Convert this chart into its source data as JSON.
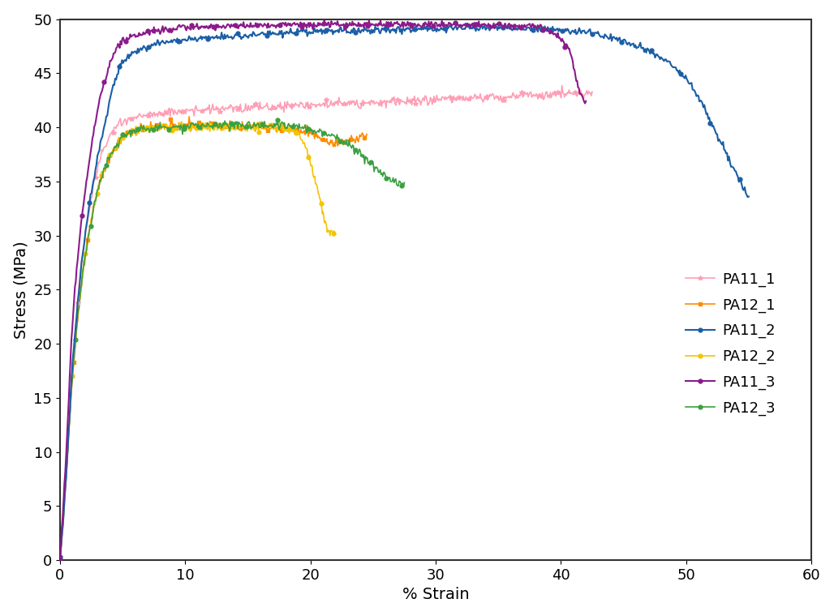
{
  "title": "",
  "xlabel": "% Strain",
  "ylabel": "Stress (MPa)",
  "xlim": [
    0,
    60
  ],
  "ylim": [
    0,
    50
  ],
  "xticks": [
    0,
    10,
    20,
    30,
    40,
    50,
    60
  ],
  "yticks": [
    0,
    5,
    10,
    15,
    20,
    25,
    30,
    35,
    40,
    45,
    50
  ],
  "colors": {
    "PA11_1": "#FF9EB5",
    "PA12_1": "#FF8C00",
    "PA11_2": "#1B5EA6",
    "PA12_2": "#F5C400",
    "PA11_3": "#8B1A8B",
    "PA12_3": "#3AA040"
  },
  "markers": {
    "PA11_1": "*",
    "PA12_1": "s",
    "PA11_2": "o",
    "PA12_2": "o",
    "PA11_3": "o",
    "PA12_3": "o"
  },
  "background_color": "#FFFFFF",
  "label_fontsize": 14,
  "tick_fontsize": 13,
  "legend_fontsize": 13
}
